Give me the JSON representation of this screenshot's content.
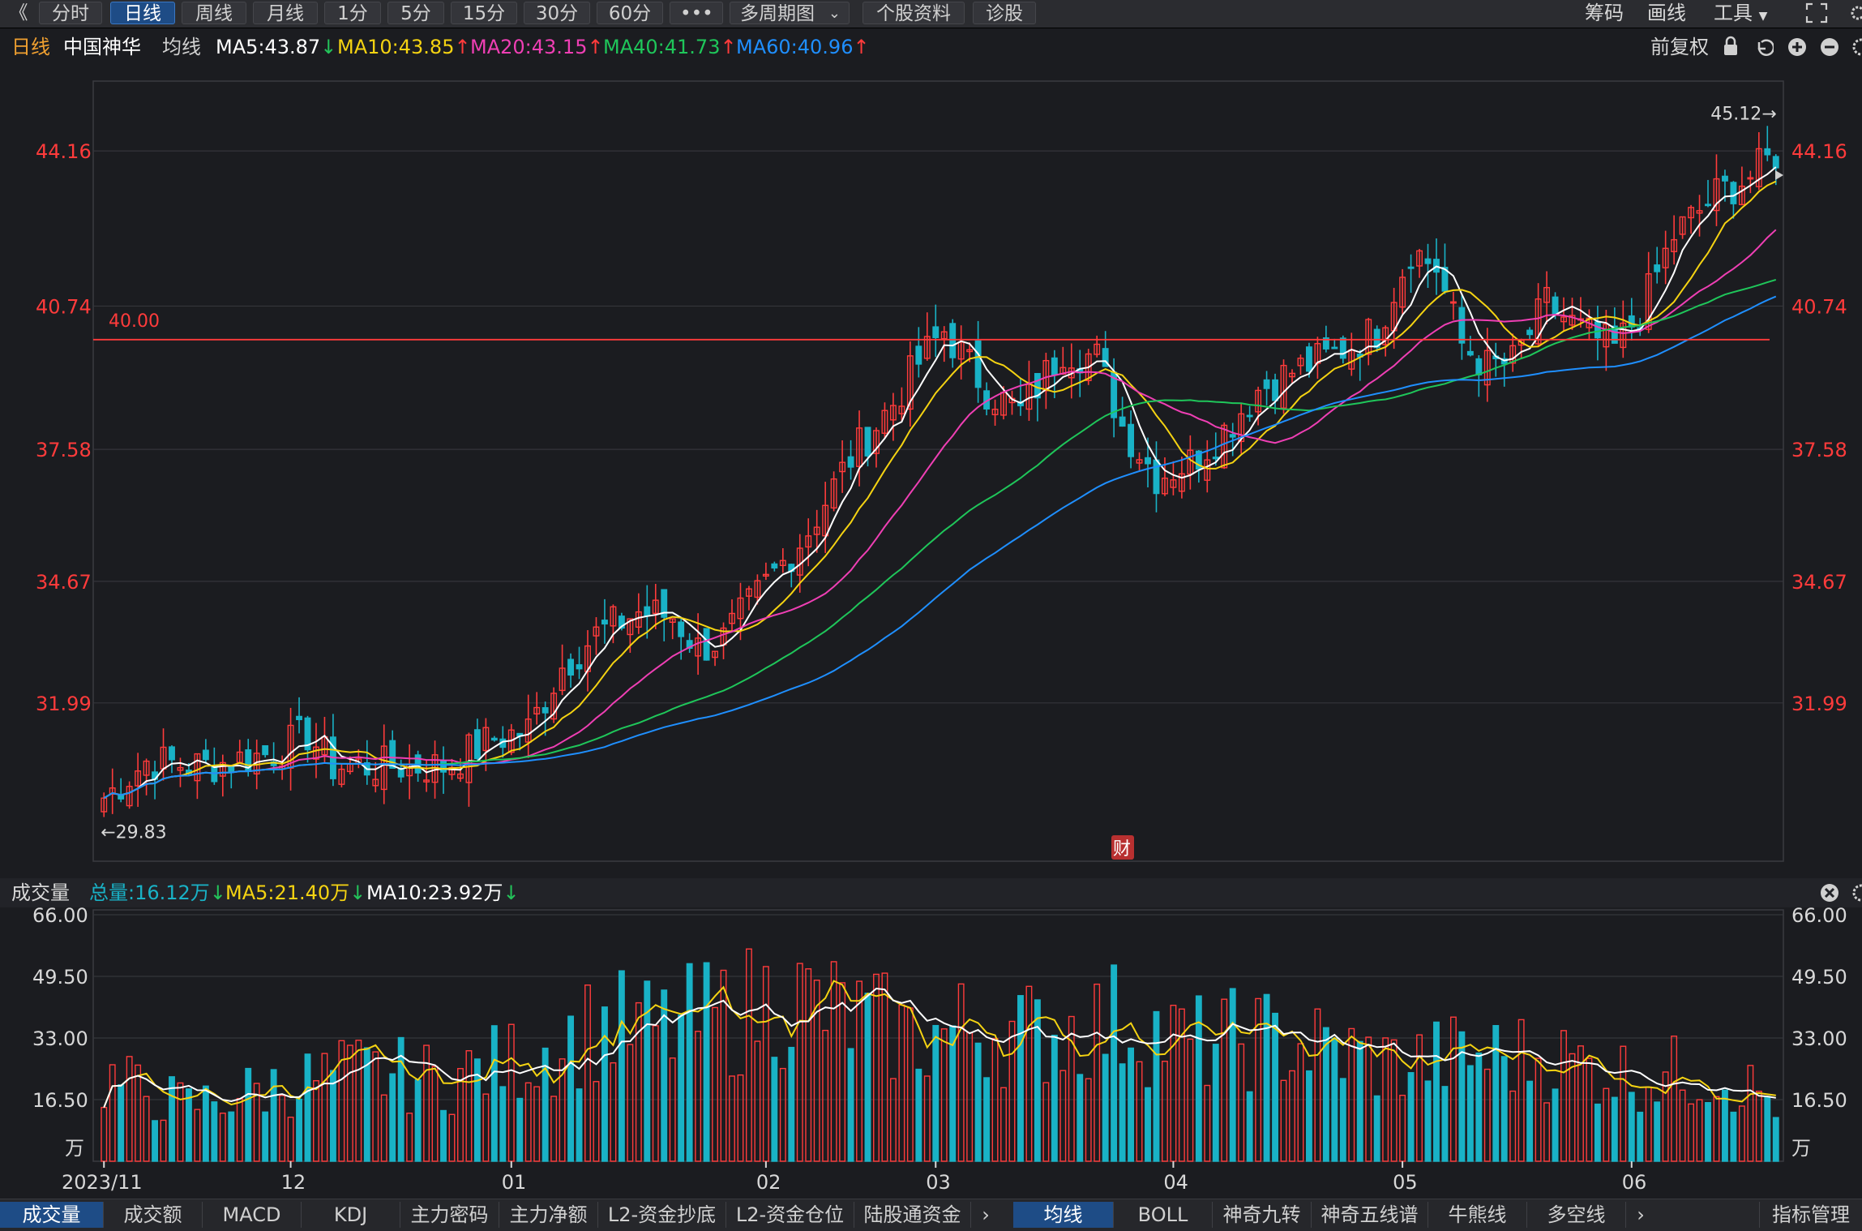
{
  "toolbar": {
    "back_glyph": "《",
    "periods": [
      "分时",
      "日线",
      "周线",
      "月线",
      "1分",
      "5分",
      "15分",
      "30分",
      "60分",
      "•••",
      "多周期图",
      "个股资料",
      "诊股"
    ],
    "active_period": "日线",
    "right_items": [
      "筹码",
      "画线",
      "工具"
    ]
  },
  "info": {
    "period": "日线",
    "stock_name": "中国神华",
    "ma_label": "均线",
    "ma5": "MA5:43.87",
    "ma10": "MA10:43.85",
    "ma20": "MA20:43.15",
    "ma40": "MA40:41.73",
    "ma60": "MA60:40.96",
    "ma5_trend": "down",
    "ma10_trend": "up",
    "ma20_trend": "up",
    "ma40_trend": "up",
    "ma60_trend": "up",
    "restore_label": "前复权"
  },
  "colors": {
    "up": "#ff3b3b",
    "down": "#19b2c6",
    "ma5": "#ffffff",
    "ma10": "#f5d312",
    "ma20": "#ef3fb4",
    "ma40": "#1fc65a",
    "ma60": "#1f8fff",
    "price_label": "#ff3b3b",
    "line_40": "#ff3b3b"
  },
  "volume_info": {
    "title": "成交量",
    "total": "总量:16.12万",
    "ma5": "MA5:21.40万",
    "ma10": "MA10:23.92万"
  },
  "bottom_tabs_left": [
    "成交量",
    "成交额",
    "MACD",
    "KDJ",
    "主力密码",
    "主力净额",
    "L2-资金抄底",
    "L2-资金仓位",
    "陆股通资金"
  ],
  "bottom_tabs_right": [
    "均线",
    "BOLL",
    "神奇九转",
    "神奇五线谱",
    "牛熊线",
    "多空线"
  ],
  "bottom_right_label": "指标管理",
  "chart_data": {
    "type": "candlestick",
    "price_axis_ticks": [
      44.16,
      40.74,
      37.58,
      34.67,
      31.99
    ],
    "price_axis_labels": [
      "44.16",
      "40.74",
      "37.58",
      "34.67",
      "31.99"
    ],
    "price_range": [
      28.5,
      45.7
    ],
    "horizontal_line": {
      "value": 40.0,
      "label": "40.00"
    },
    "high_label": "45.12→",
    "low_label": "←29.83",
    "event_marker": "财",
    "x_labels": [
      "2023/11",
      "12",
      "01",
      "02",
      "03",
      "04",
      "05",
      "06"
    ],
    "x_label_index": [
      0,
      22,
      48,
      78,
      98,
      126,
      153,
      180
    ],
    "volume_axis_labels": [
      "66.00",
      "49.50",
      "33.00",
      "16.50"
    ],
    "volume_range": [
      0,
      66
    ],
    "volume_unit": "万",
    "n_bars": 198,
    "close_anchors": [
      [
        0,
        29.9
      ],
      [
        5,
        30.7
      ],
      [
        12,
        30.6
      ],
      [
        20,
        30.9
      ],
      [
        24,
        31.3
      ],
      [
        27,
        30.6
      ],
      [
        35,
        30.6
      ],
      [
        40,
        30.6
      ],
      [
        46,
        31.2
      ],
      [
        50,
        31.4
      ],
      [
        54,
        32.8
      ],
      [
        58,
        33.5
      ],
      [
        63,
        34.0
      ],
      [
        67,
        33.9
      ],
      [
        70,
        33.2
      ],
      [
        73,
        33.4
      ],
      [
        78,
        34.6
      ],
      [
        83,
        35.8
      ],
      [
        88,
        37.4
      ],
      [
        93,
        38.6
      ],
      [
        96,
        39.5
      ],
      [
        99,
        40.2
      ],
      [
        104,
        38.9
      ],
      [
        108,
        38.4
      ],
      [
        113,
        39.8
      ],
      [
        117,
        39.6
      ],
      [
        120,
        38.1
      ],
      [
        124,
        37.0
      ],
      [
        128,
        37.3
      ],
      [
        132,
        38.0
      ],
      [
        136,
        38.9
      ],
      [
        140,
        39.3
      ],
      [
        144,
        39.6
      ],
      [
        150,
        40.2
      ],
      [
        154,
        42.0
      ],
      [
        157,
        41.6
      ],
      [
        160,
        39.9
      ],
      [
        163,
        39.4
      ],
      [
        166,
        39.5
      ],
      [
        170,
        40.8
      ],
      [
        174,
        40.2
      ],
      [
        178,
        39.8
      ],
      [
        181,
        40.6
      ],
      [
        185,
        42.3
      ],
      [
        190,
        43.2
      ],
      [
        194,
        43.6
      ],
      [
        197,
        44.1
      ]
    ],
    "volume_anchors": [
      [
        0,
        22
      ],
      [
        10,
        15
      ],
      [
        20,
        20
      ],
      [
        30,
        24
      ],
      [
        40,
        22
      ],
      [
        50,
        28
      ],
      [
        58,
        36
      ],
      [
        66,
        35
      ],
      [
        75,
        40
      ],
      [
        80,
        44
      ],
      [
        90,
        37
      ],
      [
        96,
        33
      ],
      [
        103,
        36
      ],
      [
        110,
        34
      ],
      [
        120,
        38
      ],
      [
        128,
        31
      ],
      [
        136,
        33
      ],
      [
        144,
        30
      ],
      [
        152,
        26
      ],
      [
        160,
        28
      ],
      [
        170,
        28
      ],
      [
        180,
        23
      ],
      [
        190,
        24
      ],
      [
        197,
        16
      ]
    ],
    "ma_series": [
      "MA5",
      "MA10",
      "MA20",
      "MA40",
      "MA60"
    ]
  }
}
